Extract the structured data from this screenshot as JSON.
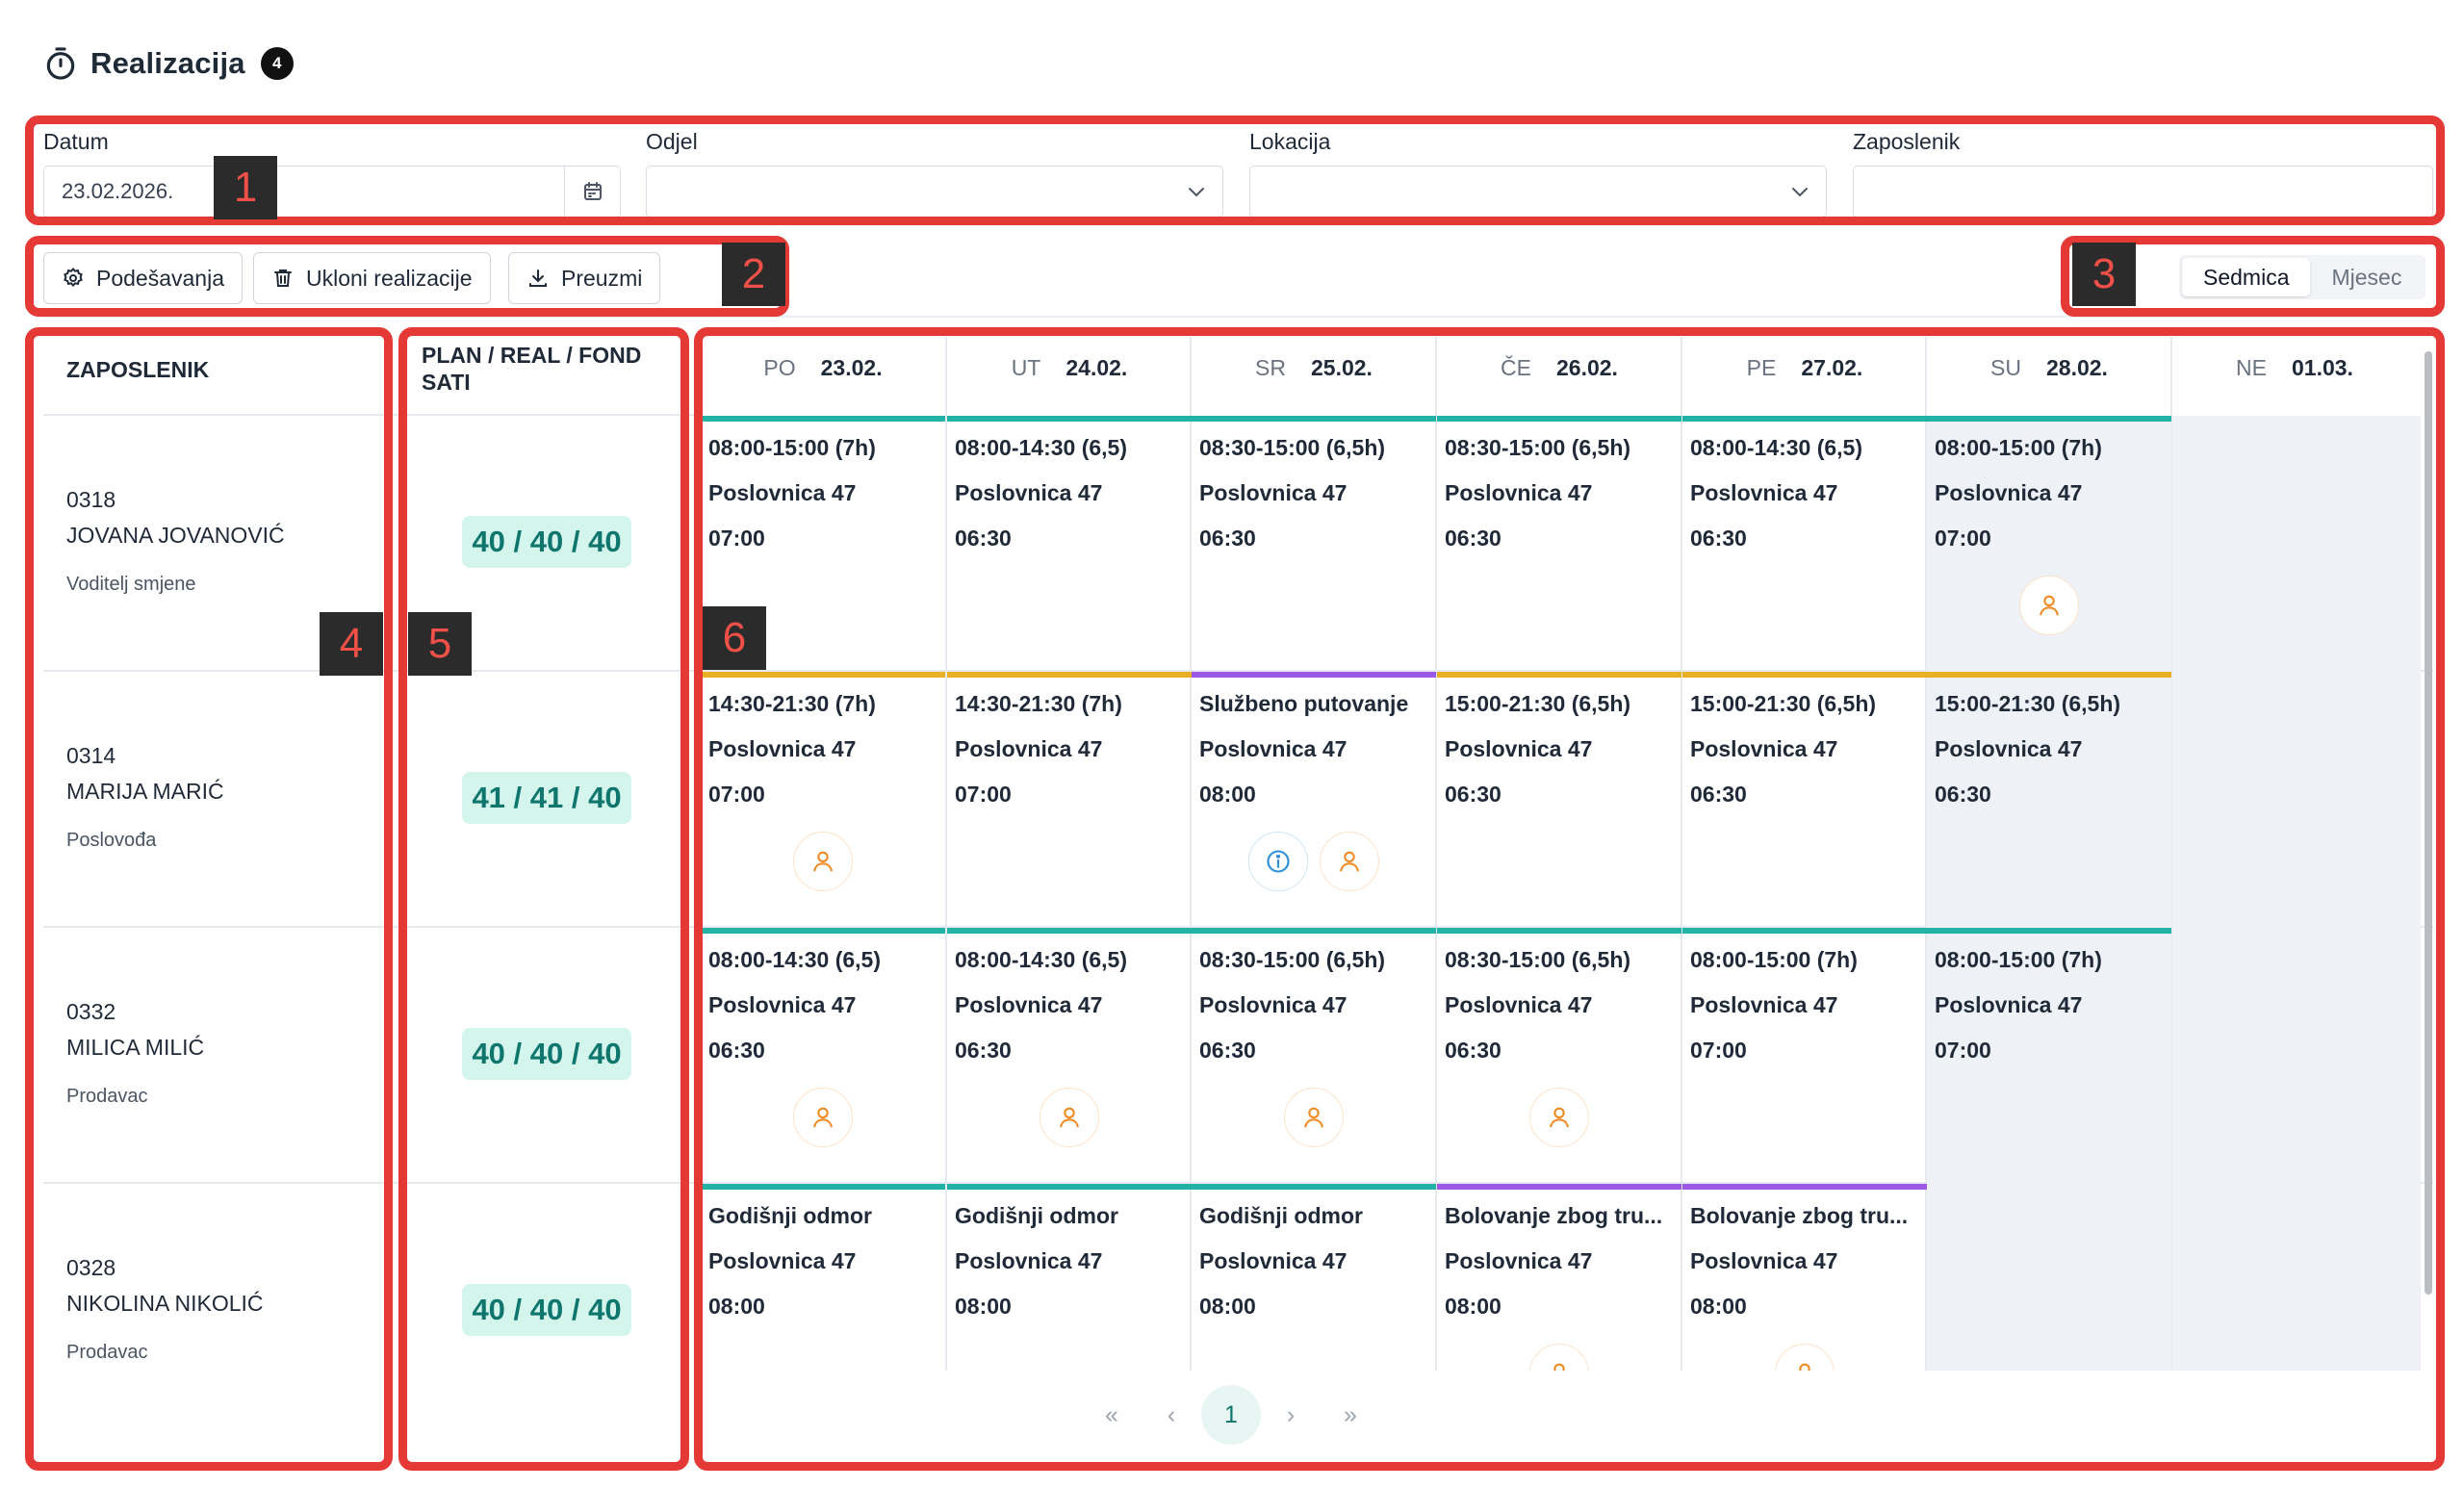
{
  "header": {
    "title": "Realizacija",
    "badge": "4"
  },
  "filters": {
    "datum": {
      "label": "Datum",
      "value": "23.02.2026."
    },
    "odjel": {
      "label": "Odjel",
      "value": ""
    },
    "lokacija": {
      "label": "Lokacija",
      "value": ""
    },
    "zaposlenik": {
      "label": "Zaposlenik",
      "value": ""
    }
  },
  "toolbar": {
    "settings_label": "Podešavanja",
    "remove_label": "Ukloni realizacije",
    "download_label": "Preuzmi"
  },
  "view_toggle": {
    "week": "Sedmica",
    "month": "Mjesec",
    "active": "Sedmica"
  },
  "table": {
    "employee_header": "ZAPOSLENIK",
    "hours_header_line1": "PLAN / REAL / FOND",
    "hours_header_line2": "SATI",
    "days": [
      {
        "name": "PO",
        "date": "23.02."
      },
      {
        "name": "UT",
        "date": "24.02."
      },
      {
        "name": "SR",
        "date": "25.02."
      },
      {
        "name": "ČE",
        "date": "26.02."
      },
      {
        "name": "PE",
        "date": "27.02."
      },
      {
        "name": "SU",
        "date": "28.02."
      },
      {
        "name": "NE",
        "date": "01.03."
      }
    ],
    "employees": [
      {
        "code": "0318",
        "name": "JOVANA JOVANOVIĆ",
        "role": "Voditelj smjene",
        "hours": "40 / 40 / 40"
      },
      {
        "code": "0314",
        "name": "MARIJA MARIĆ",
        "role": "Poslovođa",
        "hours": "41 / 41 / 40"
      },
      {
        "code": "0332",
        "name": "MILICA MILIĆ",
        "role": "Prodavac",
        "hours": "40 / 40 / 40"
      },
      {
        "code": "0328",
        "name": "NIKOLINA NIKOLIĆ",
        "role": "Prodavac",
        "hours": "40 / 40 / 40"
      }
    ],
    "shifts": [
      [
        {
          "l1": "08:00-15:00 (7h)",
          "l2": "Poslovnica 47",
          "l3": "07:00",
          "bar": "#22b3a6",
          "icons": []
        },
        {
          "l1": "08:00-14:30 (6,5)",
          "l2": "Poslovnica 47",
          "l3": "06:30",
          "bar": "#22b3a6",
          "icons": []
        },
        {
          "l1": "08:30-15:00 (6,5h)",
          "l2": "Poslovnica 47",
          "l3": "06:30",
          "bar": "#22b3a6",
          "icons": []
        },
        {
          "l1": "08:30-15:00 (6,5h)",
          "l2": "Poslovnica 47",
          "l3": "06:30",
          "bar": "#22b3a6",
          "icons": []
        },
        {
          "l1": "08:00-14:30 (6,5)",
          "l2": "Poslovnica 47",
          "l3": "06:30",
          "bar": "#22b3a6",
          "icons": []
        },
        {
          "l1": "08:00-15:00 (7h)",
          "l2": "Poslovnica 47",
          "l3": "07:00",
          "bar": "#22b3a6",
          "icons": [
            "user"
          ]
        },
        null
      ],
      [
        {
          "l1": "14:30-21:30 (7h)",
          "l2": "Poslovnica 47",
          "l3": "07:00",
          "bar": "#e8b024",
          "icons": [
            "user"
          ]
        },
        {
          "l1": "14:30-21:30 (7h)",
          "l2": "Poslovnica 47",
          "l3": "07:00",
          "bar": "#e8b024",
          "icons": []
        },
        {
          "l1": "Službeno putovanje",
          "l2": "Poslovnica 47",
          "l3": "08:00",
          "bar": "#9b59e6",
          "icons": [
            "info",
            "user"
          ]
        },
        {
          "l1": "15:00-21:30 (6,5h)",
          "l2": "Poslovnica 47",
          "l3": "06:30",
          "bar": "#e8b024",
          "icons": []
        },
        {
          "l1": "15:00-21:30 (6,5h)",
          "l2": "Poslovnica 47",
          "l3": "06:30",
          "bar": "#e8b024",
          "icons": []
        },
        {
          "l1": "15:00-21:30 (6,5h)",
          "l2": "Poslovnica 47",
          "l3": "06:30",
          "bar": "#e8b024",
          "icons": []
        },
        null
      ],
      [
        {
          "l1": "08:00-14:30 (6,5)",
          "l2": "Poslovnica 47",
          "l3": "06:30",
          "bar": "#22b3a6",
          "icons": [
            "user"
          ]
        },
        {
          "l1": "08:00-14:30 (6,5)",
          "l2": "Poslovnica 47",
          "l3": "06:30",
          "bar": "#22b3a6",
          "icons": [
            "user"
          ]
        },
        {
          "l1": "08:30-15:00 (6,5h)",
          "l2": "Poslovnica 47",
          "l3": "06:30",
          "bar": "#22b3a6",
          "icons": [
            "user"
          ]
        },
        {
          "l1": "08:30-15:00 (6,5h)",
          "l2": "Poslovnica 47",
          "l3": "06:30",
          "bar": "#22b3a6",
          "icons": [
            "user"
          ]
        },
        {
          "l1": "08:00-15:00 (7h)",
          "l2": "Poslovnica 47",
          "l3": "07:00",
          "bar": "#22b3a6",
          "icons": []
        },
        {
          "l1": "08:00-15:00 (7h)",
          "l2": "Poslovnica 47",
          "l3": "07:00",
          "bar": "#22b3a6",
          "icons": []
        },
        null
      ],
      [
        {
          "l1": "Godišnji odmor",
          "l2": "Poslovnica 47",
          "l3": "08:00",
          "bar": "#22b3a6",
          "icons": []
        },
        {
          "l1": "Godišnji odmor",
          "l2": "Poslovnica 47",
          "l3": "08:00",
          "bar": "#22b3a6",
          "icons": []
        },
        {
          "l1": "Godišnji odmor",
          "l2": "Poslovnica 47",
          "l3": "08:00",
          "bar": "#22b3a6",
          "icons": []
        },
        {
          "l1": "Bolovanje zbog tru...",
          "l2": "Poslovnica 47",
          "l3": "08:00",
          "bar": "#9b59e6",
          "icons": [
            "user"
          ]
        },
        {
          "l1": "Bolovanje zbog tru...",
          "l2": "Poslovnica 47",
          "l3": "08:00",
          "bar": "#9b59e6",
          "icons": [
            "user"
          ]
        },
        null,
        null
      ]
    ]
  },
  "pagination": {
    "first": "«",
    "prev": "‹",
    "current": "1",
    "next": "›",
    "last": "»"
  },
  "callouts": [
    "1",
    "2",
    "3",
    "4",
    "5",
    "6"
  ],
  "colors": {
    "accent": "#22b3a6",
    "callout": "#e53935",
    "weekend": "#eef2f7"
  }
}
